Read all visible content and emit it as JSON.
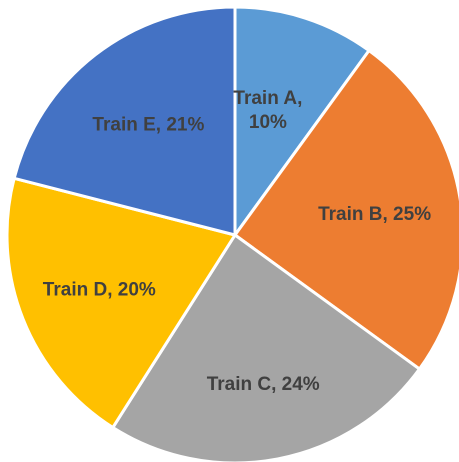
{
  "chart_data": {
    "type": "pie",
    "title": "",
    "start_angle_deg": 0,
    "direction": "clockwise",
    "slices": [
      {
        "label": "Train A",
        "value": 10,
        "display": [
          "Train A,",
          "10%"
        ],
        "color": "#5B9BD5"
      },
      {
        "label": "Train B",
        "value": 25,
        "display": [
          "Train B, 25%"
        ],
        "color": "#ED7D31"
      },
      {
        "label": "Train C",
        "value": 24,
        "display": [
          "Train C, 24%"
        ],
        "color": "#A5A5A5"
      },
      {
        "label": "Train D",
        "value": 20,
        "display": [
          "Train D, 20%"
        ],
        "color": "#FFC000"
      },
      {
        "label": "Train E",
        "value": 21,
        "display": [
          "Train E, 21%"
        ],
        "color": "#4472C4"
      }
    ]
  }
}
